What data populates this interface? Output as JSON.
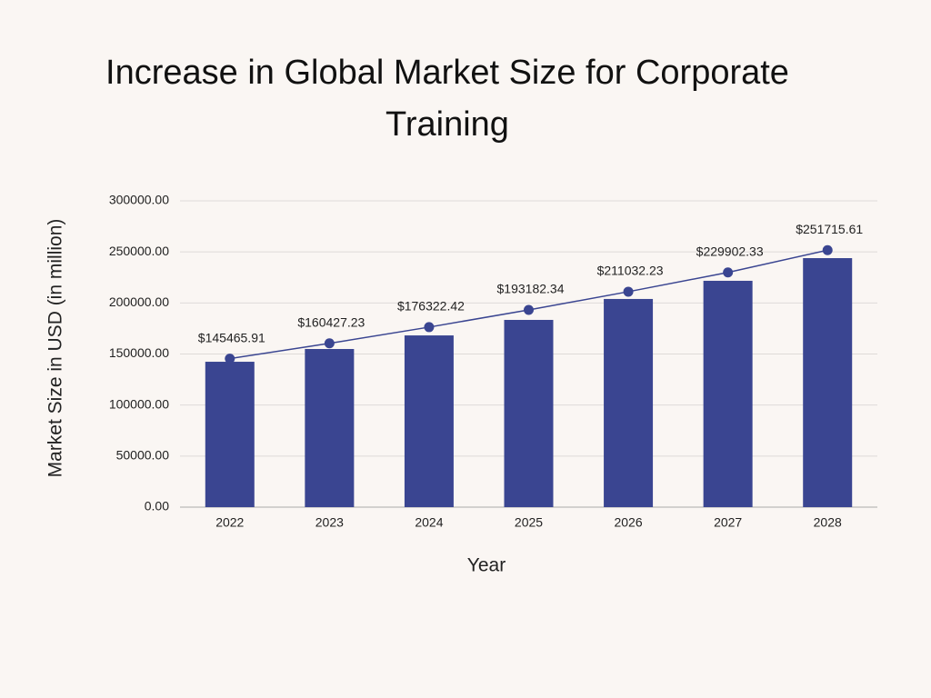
{
  "chart_data": {
    "type": "bar",
    "title": "Increase in Global Market Size for Corporate Training",
    "x_label": "Year",
    "y_label": "Market Size in USD (in million)",
    "categories": [
      "2022",
      "2023",
      "2024",
      "2025",
      "2026",
      "2027",
      "2028"
    ],
    "series": [
      {
        "type": "bar",
        "color": "#3a4591",
        "values": [
          142400,
          154900,
          168200,
          183400,
          203900,
          221700,
          243900
        ]
      },
      {
        "type": "line",
        "color": "#3a4591",
        "values": [
          145465.91,
          160427.23,
          176322.42,
          193182.34,
          211032.23,
          229902.33,
          251715.61
        ],
        "value_labels": [
          "$145465.91",
          "$160427.23",
          "$176322.42",
          "$193182.34",
          "$211032.23",
          "$229902.33",
          "$251715.61"
        ]
      }
    ],
    "ylim": [
      0,
      300000
    ],
    "yticks": [
      {
        "value": 0,
        "label": "0.00"
      },
      {
        "value": 50000,
        "label": "50000.00"
      },
      {
        "value": 100000,
        "label": "100000.00"
      },
      {
        "value": 150000,
        "label": "150000.00"
      },
      {
        "value": 200000,
        "label": "200000.00"
      },
      {
        "value": 250000,
        "label": "250000.00"
      },
      {
        "value": 300000,
        "label": "300000.00"
      }
    ],
    "grid": true
  }
}
